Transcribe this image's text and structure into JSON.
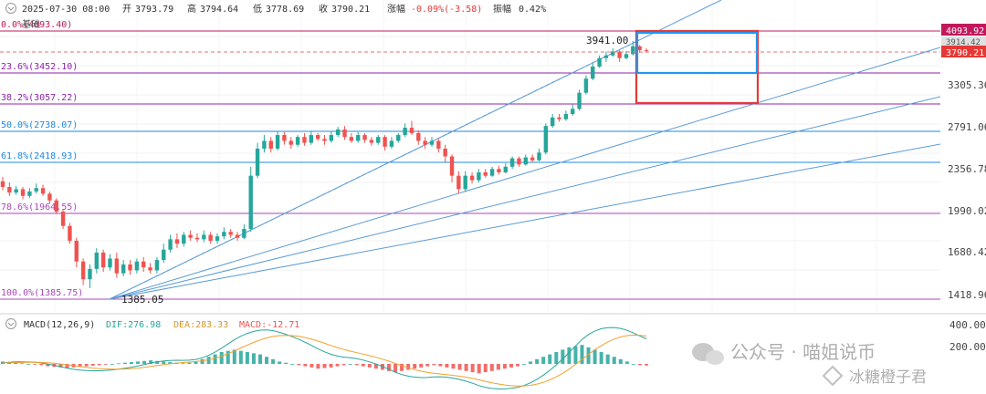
{
  "header": {
    "collapse_icon": "chevron-down-icon",
    "datetime": "2025-07-30 08:00",
    "open_label": "开",
    "open": "3793.79",
    "high_label": "高",
    "high": "3794.64",
    "low_label": "低",
    "low": "3778.69",
    "close_label": "收",
    "close": "3790.21",
    "change_label": "涨幅",
    "change": "-0.09%(-3.58)",
    "amplitude_label": "振幅",
    "amplitude": "0.42%",
    "sub_label": "基础"
  },
  "chart_data": [
    {
      "type": "candlestick",
      "title": "",
      "y_axis_ticks": [
        "4093.92",
        "3914.42",
        "3790.21",
        "3305.36",
        "2791.06",
        "2356.78",
        "1990.02",
        "1680.42",
        "1418.96"
      ],
      "last_price": "3790.21",
      "fib_levels": [
        {
          "label": "0.0%(4093.40)",
          "value": 4093.4,
          "color": "#c2185b"
        },
        {
          "label": "23.6%(3452.10)",
          "value": 3452.1,
          "color": "#8e24aa"
        },
        {
          "label": "38.2%(3057.22)",
          "value": 3057.22,
          "color": "#8e24aa"
        },
        {
          "label": "50.0%(2738.07)",
          "value": 2738.07,
          "color": "#1e88e5"
        },
        {
          "label": "61.8%(2418.93)",
          "value": 2418.93,
          "color": "#1e88e5"
        },
        {
          "label": "78.6%(1964.55)",
          "value": 1964.55,
          "color": "#ab47bc"
        },
        {
          "label": "100.0%(1385.75)",
          "value": 1385.75,
          "color": "#ab47bc"
        }
      ],
      "annotations": {
        "low_point": "1385.05",
        "high_point": "3941.00"
      },
      "candles": [
        [
          2250,
          2200,
          2290,
          2170
        ],
        [
          2200,
          2150,
          2240,
          2120
        ],
        [
          2150,
          2180,
          2210,
          2130
        ],
        [
          2180,
          2120,
          2200,
          2090
        ],
        [
          2120,
          2160,
          2190,
          2100
        ],
        [
          2160,
          2190,
          2230,
          2140
        ],
        [
          2190,
          2140,
          2220,
          2120
        ],
        [
          2140,
          2080,
          2160,
          2050
        ],
        [
          2080,
          1980,
          2100,
          1960
        ],
        [
          1980,
          1880,
          2000,
          1860
        ],
        [
          1880,
          1780,
          1900,
          1760
        ],
        [
          1780,
          1640,
          1800,
          1600
        ],
        [
          1640,
          1520,
          1660,
          1480
        ],
        [
          1520,
          1590,
          1620,
          1460
        ],
        [
          1590,
          1700,
          1730,
          1560
        ],
        [
          1700,
          1600,
          1720,
          1570
        ],
        [
          1600,
          1660,
          1690,
          1580
        ],
        [
          1660,
          1560,
          1700,
          1530
        ],
        [
          1560,
          1620,
          1650,
          1540
        ],
        [
          1620,
          1580,
          1650,
          1550
        ],
        [
          1580,
          1640,
          1660,
          1560
        ],
        [
          1640,
          1600,
          1670,
          1570
        ],
        [
          1600,
          1580,
          1630,
          1560
        ],
        [
          1580,
          1650,
          1670,
          1560
        ],
        [
          1650,
          1720,
          1760,
          1630
        ],
        [
          1720,
          1790,
          1820,
          1700
        ],
        [
          1790,
          1760,
          1830,
          1730
        ],
        [
          1760,
          1820,
          1840,
          1740
        ],
        [
          1820,
          1800,
          1850,
          1780
        ],
        [
          1800,
          1790,
          1830,
          1770
        ],
        [
          1790,
          1820,
          1850,
          1770
        ],
        [
          1820,
          1780,
          1840,
          1760
        ],
        [
          1780,
          1810,
          1830,
          1760
        ],
        [
          1810,
          1840,
          1870,
          1790
        ],
        [
          1840,
          1820,
          1860,
          1800
        ],
        [
          1820,
          1800,
          1840,
          1780
        ],
        [
          1800,
          1860,
          1890,
          1790
        ],
        [
          1860,
          2300,
          2380,
          1840
        ],
        [
          2300,
          2560,
          2620,
          2280
        ],
        [
          2560,
          2640,
          2700,
          2520
        ],
        [
          2640,
          2560,
          2680,
          2520
        ],
        [
          2560,
          2700,
          2740,
          2540
        ],
        [
          2700,
          2640,
          2730,
          2600
        ],
        [
          2640,
          2600,
          2680,
          2560
        ],
        [
          2600,
          2680,
          2700,
          2580
        ],
        [
          2680,
          2620,
          2720,
          2590
        ],
        [
          2620,
          2700,
          2740,
          2600
        ],
        [
          2700,
          2660,
          2720,
          2640
        ],
        [
          2660,
          2640,
          2700,
          2600
        ],
        [
          2640,
          2700,
          2740,
          2620
        ],
        [
          2700,
          2760,
          2790,
          2680
        ],
        [
          2760,
          2680,
          2800,
          2650
        ],
        [
          2680,
          2640,
          2720,
          2620
        ],
        [
          2640,
          2700,
          2730,
          2620
        ],
        [
          2700,
          2650,
          2720,
          2620
        ],
        [
          2650,
          2620,
          2680,
          2590
        ],
        [
          2620,
          2680,
          2700,
          2600
        ],
        [
          2680,
          2580,
          2700,
          2540
        ],
        [
          2580,
          2640,
          2680,
          2560
        ],
        [
          2640,
          2700,
          2720,
          2620
        ],
        [
          2700,
          2780,
          2830,
          2680
        ],
        [
          2780,
          2720,
          2860,
          2700
        ],
        [
          2720,
          2640,
          2750,
          2600
        ],
        [
          2640,
          2600,
          2680,
          2560
        ],
        [
          2600,
          2640,
          2680,
          2580
        ],
        [
          2640,
          2560,
          2660,
          2520
        ],
        [
          2560,
          2480,
          2600,
          2420
        ],
        [
          2480,
          2300,
          2500,
          2240
        ],
        [
          2300,
          2180,
          2340,
          2140
        ],
        [
          2180,
          2300,
          2340,
          2160
        ],
        [
          2300,
          2260,
          2330,
          2230
        ],
        [
          2260,
          2330,
          2360,
          2240
        ],
        [
          2330,
          2300,
          2360,
          2280
        ],
        [
          2300,
          2360,
          2380,
          2290
        ],
        [
          2360,
          2330,
          2390,
          2310
        ],
        [
          2330,
          2380,
          2410,
          2320
        ],
        [
          2380,
          2460,
          2480,
          2360
        ],
        [
          2460,
          2400,
          2480,
          2380
        ],
        [
          2400,
          2470,
          2500,
          2390
        ],
        [
          2470,
          2440,
          2500,
          2420
        ],
        [
          2440,
          2520,
          2560,
          2430
        ],
        [
          2520,
          2800,
          2830,
          2500
        ],
        [
          2800,
          2900,
          2940,
          2780
        ],
        [
          2900,
          2880,
          2940,
          2850
        ],
        [
          2880,
          2940,
          2980,
          2860
        ],
        [
          2940,
          3000,
          3050,
          2920
        ],
        [
          3000,
          3200,
          3240,
          2980
        ],
        [
          3200,
          3380,
          3420,
          3180
        ],
        [
          3380,
          3550,
          3600,
          3360
        ],
        [
          3550,
          3680,
          3720,
          3530
        ],
        [
          3680,
          3720,
          3780,
          3620
        ],
        [
          3720,
          3780,
          3830,
          3700
        ],
        [
          3780,
          3680,
          3800,
          3620
        ],
        [
          3680,
          3740,
          3790,
          3660
        ],
        [
          3740,
          3860,
          3941,
          3720
        ],
        [
          3860,
          3800,
          3880,
          3760
        ],
        [
          3800,
          3790,
          3830,
          3760
        ]
      ]
    },
    {
      "type": "bar",
      "title": "MACD(12,26,9)",
      "legend": [
        {
          "name": "DIF",
          "value": "276.98",
          "color": "#26a69a"
        },
        {
          "name": "DEA",
          "value": "283.33",
          "color": "#f0a030"
        },
        {
          "name": "MACD",
          "value": "-12.71",
          "color": "#ef5350"
        }
      ],
      "y_axis_ticks": [
        "400.00",
        "200.00"
      ],
      "histogram": [
        20,
        15,
        10,
        5,
        0,
        -5,
        -10,
        -20,
        -25,
        -30,
        -35,
        -30,
        -25,
        -20,
        -15,
        -10,
        -5,
        0,
        5,
        10,
        15,
        20,
        25,
        30,
        25,
        20,
        15,
        10,
        5,
        10,
        20,
        40,
        60,
        80,
        100,
        110,
        120,
        110,
        100,
        90,
        80,
        60,
        40,
        20,
        10,
        0,
        -10,
        -20,
        -30,
        -40,
        -35,
        -30,
        -20,
        -10,
        0,
        -10,
        -20,
        -30,
        -40,
        -50,
        -60,
        -70,
        -60,
        -50,
        -40,
        -30,
        -20,
        -10,
        -20,
        -30,
        -40,
        -50,
        -60,
        -70,
        -80,
        -70,
        -60,
        -50,
        -40,
        -30,
        -20,
        0,
        20,
        40,
        60,
        80,
        100,
        120,
        140,
        150,
        160,
        140,
        120,
        100,
        80,
        60,
        40,
        20,
        0,
        -10,
        -13
      ]
    }
  ],
  "watermark": {
    "text1": "公众号 · 喵姐说币",
    "text2": "冰糖橙子君"
  }
}
